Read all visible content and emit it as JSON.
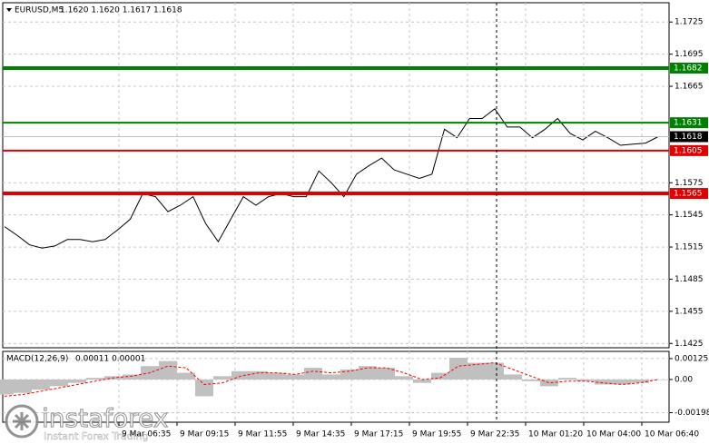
{
  "chart_data": [
    {
      "type": "line",
      "title": "EURUSD,M5",
      "subtitle": "1.1620 1.1620 1.1617 1.1618",
      "series": [
        {
          "color": "#000000",
          "values": [
            1.1534,
            1.1526,
            1.1517,
            1.1514,
            1.1516,
            1.1522,
            1.1522,
            1.152,
            1.1522,
            1.1531,
            1.1541,
            1.1565,
            1.1562,
            1.1548,
            1.1554,
            1.1562,
            1.1537,
            1.152,
            1.1541,
            1.1562,
            1.1554,
            1.1562,
            1.1565,
            1.1562,
            1.1562,
            1.1586,
            1.1575,
            1.1562,
            1.1583,
            1.1591,
            1.1598,
            1.1587,
            1.1583,
            1.1579,
            1.1583,
            1.1625,
            1.1617,
            1.1635,
            1.1635,
            1.1644,
            1.1627,
            1.1627,
            1.1617,
            1.1625,
            1.1635,
            1.1621,
            1.1615,
            1.1623,
            1.1617,
            1.161,
            1.1611,
            1.1612,
            1.1618
          ]
        }
      ],
      "ylim": [
        1.1421,
        1.1743
      ],
      "yticks": [
        1.1725,
        1.1695,
        1.1665,
        1.1575,
        1.1545,
        1.1515,
        1.1485,
        1.1455,
        1.1425
      ],
      "grid": true,
      "levels": [
        {
          "value": 1.1682,
          "color": "#008000",
          "thick": true
        },
        {
          "value": 1.1631,
          "color": "#008000",
          "thick": false
        },
        {
          "value": 1.1605,
          "color": "#e00000",
          "thick": false
        },
        {
          "value": 1.1565,
          "color": "#e00000",
          "thick": true
        }
      ],
      "current": 1.1618
    },
    {
      "type": "bar",
      "title": "MACD(12,26,9)",
      "subtitle": "0.00011 0.00001",
      "series": [
        {
          "color": "#c0c0c0",
          "values": [
            -0.0009,
            -0.0008,
            -0.0006,
            -0.0004,
            -0.0002,
            0.0001,
            0.0002,
            0.0003,
            0.0008,
            0.0011,
            0.0004,
            -0.001,
            0.0002,
            0.0005,
            0.0005,
            0.0004,
            0.0003,
            0.0007,
            0.0003,
            0.0006,
            0.0008,
            0.0007,
            0.0002,
            -0.0002,
            0.0004,
            0.0013,
            0.001,
            0.001,
            0.0003,
            -0.0001,
            -0.0004,
            0.0001,
            -0.0001,
            -0.0003,
            -0.0003,
            -0.0002,
            0.0
          ]
        },
        {
          "color": "#ff0000",
          "type": "line",
          "values": [
            -0.001,
            -0.0009,
            -0.0007,
            -0.0005,
            -0.0003,
            -0.0001,
            0.0001,
            0.0002,
            0.0004,
            0.0008,
            0.0007,
            -0.0003,
            -0.0002,
            0.0002,
            0.0004,
            0.0004,
            0.0003,
            0.0005,
            0.0004,
            0.0005,
            0.0007,
            0.0007,
            0.0004,
            0.0,
            0.0001,
            0.0008,
            0.0009,
            0.001,
            0.0006,
            0.0002,
            -0.0002,
            -0.0001,
            -0.0001,
            -0.0002,
            -0.0003,
            -0.0002,
            0.0
          ]
        }
      ],
      "ylim": [
        -0.00255,
        0.00168
      ],
      "yticks": [
        0.00125,
        {
          "value": 0,
          "label": "0.00"
        },
        -0.00198
      ]
    }
  ],
  "time_axis": [
    "9 Mar 06:35",
    "9 Mar 09:15",
    "9 Mar 11:55",
    "9 Mar 14:35",
    "9 Mar 17:15",
    "9 Mar 19:55",
    "9 Mar 22:35",
    "10 Mar 01:20",
    "10 Mar 04:00",
    "10 Mar 06:40"
  ],
  "watermark": {
    "brand": "instaforex",
    "tagline": "Instant Forex Trading"
  }
}
